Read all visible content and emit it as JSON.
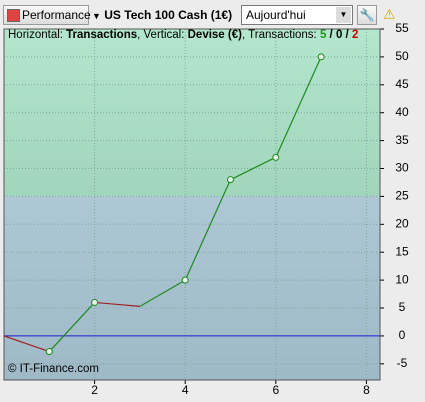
{
  "toolbar": {
    "performance": "Performance",
    "instrument": "US Tech 100 Cash (1€)",
    "period": "Aujourd'hui"
  },
  "chart_data": {
    "type": "line",
    "header": [
      {
        "text": "Horizontal: ",
        "bold": false,
        "color": "#000000"
      },
      {
        "text": "Transactions",
        "bold": true,
        "color": "#000000"
      },
      {
        "text": ", Vertical: ",
        "bold": false,
        "color": "#000000"
      },
      {
        "text": "Devise (€)",
        "bold": true,
        "color": "#000000"
      },
      {
        "text": ", Transactions: ",
        "bold": false,
        "color": "#000000"
      },
      {
        "text": "5",
        "bold": true,
        "color": "#1a9a1a"
      },
      {
        "text": " / ",
        "bold": true,
        "color": "#000000"
      },
      {
        "text": "0",
        "bold": true,
        "color": "#000000"
      },
      {
        "text": " / ",
        "bold": true,
        "color": "#000000"
      },
      {
        "text": "2",
        "bold": true,
        "color": "#cc0000"
      }
    ],
    "footer": "© IT-Finance.com",
    "x": [
      0,
      1,
      2,
      3,
      4,
      5,
      6,
      7
    ],
    "values": [
      0,
      -2.8,
      6,
      5.3,
      10,
      28,
      32,
      50
    ],
    "markers": [
      false,
      true,
      true,
      false,
      true,
      true,
      true,
      true
    ],
    "up_color": "#1e8a1e",
    "down_color": "#a02020",
    "zero_line_color": "#2020d0",
    "threshold": 25,
    "above_color": "#a6e2c4",
    "below_color": "#b4d2e2",
    "xlim": [
      0,
      8.3
    ],
    "xticks": [
      2,
      4,
      6,
      8
    ],
    "ylim": [
      -7.9,
      55
    ],
    "yticks": [
      -5,
      0,
      5,
      10,
      15,
      20,
      25,
      30,
      35,
      40,
      45,
      50,
      55
    ],
    "grid": true
  }
}
